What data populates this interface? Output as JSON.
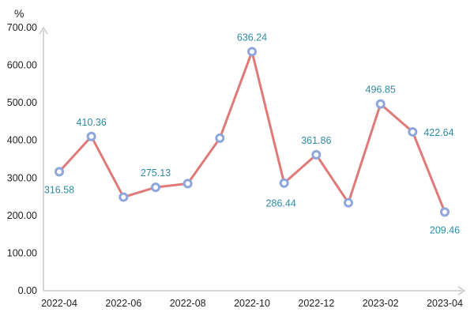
{
  "chart_data": {
    "type": "line",
    "title": "",
    "ylabel": "%",
    "xlabel": "",
    "ylim": [
      0,
      700
    ],
    "yticks": [
      "0.00",
      "100.00",
      "200.00",
      "300.00",
      "400.00",
      "500.00",
      "600.00",
      "700.00"
    ],
    "categories": [
      "2022-04",
      "2022-05",
      "2022-06",
      "2022-07",
      "2022-08",
      "2022-09",
      "2022-10",
      "2022-11",
      "2022-12",
      "2023-01",
      "2023-02",
      "2023-03",
      "2023-04"
    ],
    "xtick_labels": [
      "2022-04",
      "2022-06",
      "2022-08",
      "2022-10",
      "2022-12",
      "2023-02",
      "2023-04"
    ],
    "series": [
      {
        "name": "value",
        "values": [
          316.58,
          410.36,
          249,
          275.13,
          285,
          406,
          636.24,
          286.44,
          361.86,
          234,
          496.85,
          422.64,
          209.46
        ],
        "labels": [
          "316.58",
          "410.36",
          null,
          "275.13",
          null,
          null,
          "636.24",
          "286.44",
          "361.86",
          null,
          "496.85",
          "422.64",
          "209.46"
        ],
        "label_pos": [
          "below",
          "above",
          null,
          "above",
          null,
          null,
          "above",
          "below-left",
          "above",
          null,
          "above",
          "right",
          "below"
        ]
      }
    ],
    "colors": {
      "line": "#e07a78",
      "marker": "#8fa6dc",
      "label": "#2f8aa3",
      "axis": "#c8c8c8"
    },
    "grid": false
  }
}
